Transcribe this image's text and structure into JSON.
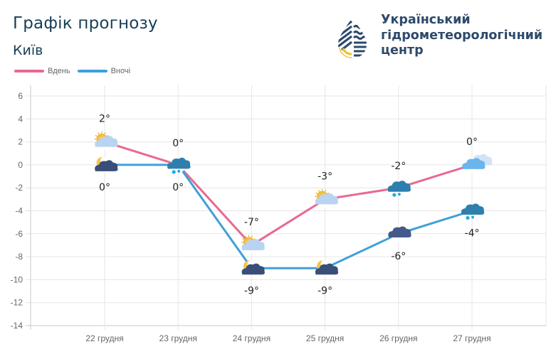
{
  "header": {
    "title": "Графік прогнозу",
    "city": "Київ"
  },
  "organization": {
    "name_line1": "Український",
    "name_line2": "гідрометеорологічний",
    "name_line3": "центр",
    "logo_icon": "water-drop-logo-icon"
  },
  "colors": {
    "day": "#e8698f",
    "night": "#3fa0d8",
    "title": "#163e57",
    "org": "#2e4a6b",
    "grid": "#e6e6e6"
  },
  "chart_data": {
    "type": "line",
    "title": "Графік прогнозу",
    "xlabel": "",
    "ylabel": "",
    "categories": [
      "22 грудня",
      "23 грудня",
      "24 грудня",
      "25 грудня",
      "26 грудня",
      "27 грудня"
    ],
    "ylim": [
      -14,
      6
    ],
    "yticks": [
      6,
      4,
      2,
      0,
      -2,
      -4,
      -6,
      -8,
      -10,
      -12,
      -14
    ],
    "grid": true,
    "legend_position": "top-left",
    "series": [
      {
        "name": "Вдень",
        "values": [
          2,
          0,
          -7,
          -3,
          -2,
          0
        ],
        "labels": [
          "2°",
          "0°",
          "-7°",
          "-3°",
          "-2°",
          "0°"
        ],
        "icons": [
          "sun-cloud-icon",
          "cloud-snow-icon",
          "sun-cloud-icon",
          "sun-cloud-icon",
          "cloud-snow-icon",
          "cloud-icon"
        ],
        "label_position": "above"
      },
      {
        "name": "Вночі",
        "values": [
          0,
          0,
          -9,
          -9,
          -6,
          -4
        ],
        "labels": [
          "0°",
          "0°",
          "-9°",
          "-9°",
          "-6°",
          "-4°"
        ],
        "icons": [
          "moon-cloud-icon",
          "cloud-snow-icon",
          "moon-cloud-icon",
          "moon-cloud-icon",
          "dark-cloud-icon",
          "cloud-snow-icon"
        ],
        "label_position": "below"
      }
    ]
  }
}
